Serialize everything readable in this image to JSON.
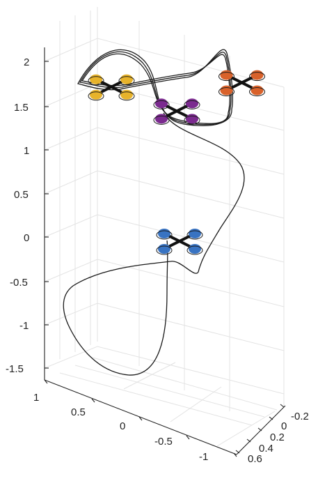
{
  "chart_data": {
    "type": "line",
    "projection": "3d",
    "title": "",
    "xlabel": "",
    "ylabel": "",
    "zlabel": "",
    "grid": true,
    "axes": {
      "x": {
        "ticks": [
          "1",
          "0.5",
          "0",
          "-0.5",
          "-1"
        ],
        "range": [
          1,
          -1
        ]
      },
      "y": {
        "ticks": [
          "-0.2",
          "0",
          "0.2",
          "0.4",
          "0.6"
        ],
        "range": [
          -0.2,
          0.6
        ]
      },
      "z": {
        "ticks": [
          "2",
          "1.5",
          "1",
          "0.5",
          "0",
          "-0.5",
          "-1",
          "-1.5"
        ],
        "range": [
          -1.6,
          2.1
        ]
      }
    },
    "series": [
      {
        "type": "trajectory",
        "description_color": "#1a1a1a"
      }
    ],
    "drones": [
      {
        "color": "#e7b32b",
        "position": {
          "x": 0.6,
          "y": 0.0,
          "z": 1.75
        }
      },
      {
        "color": "#7b2a8f",
        "position": {
          "x": 0.0,
          "y": 0.1,
          "z": 1.45
        }
      },
      {
        "color": "#d9622b",
        "position": {
          "x": -0.65,
          "y": 0.0,
          "z": 1.7
        }
      },
      {
        "color": "#3873c2",
        "position": {
          "x": 0.0,
          "y": 0.2,
          "z": 0.0
        }
      }
    ]
  }
}
